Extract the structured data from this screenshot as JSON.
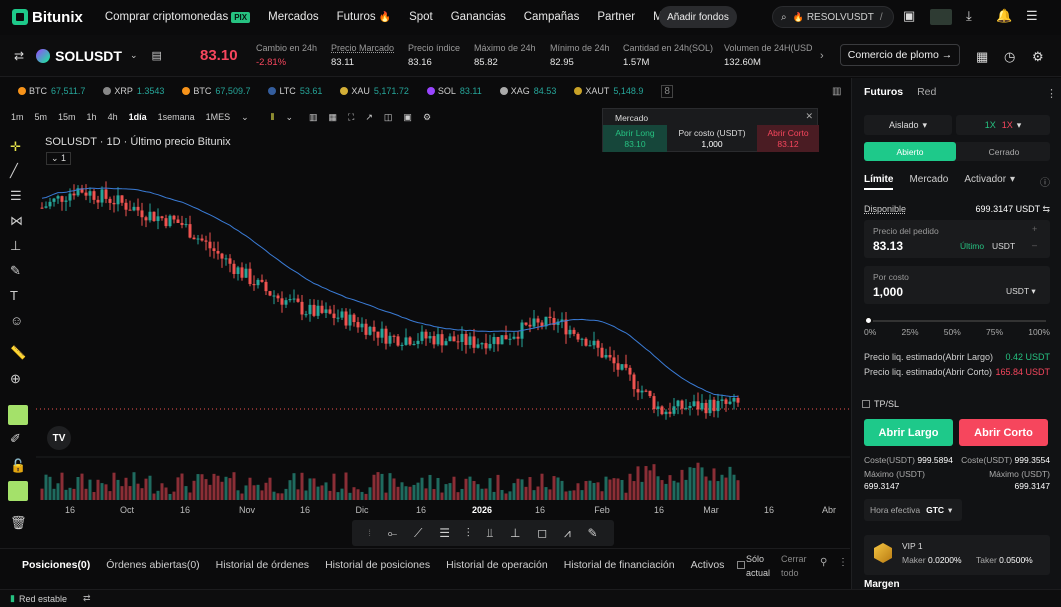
{
  "nav": {
    "brand": "Bitunix",
    "menu": [
      {
        "label": "Comprar criptomonedas",
        "badge": "PIX"
      },
      {
        "label": "Mercados"
      },
      {
        "label": "Futuros",
        "badge_icon": "fire-icon"
      },
      {
        "label": "Spot"
      },
      {
        "label": "Ganancias"
      },
      {
        "label": "Campañas"
      },
      {
        "label": "Partner"
      },
      {
        "label": "Más"
      }
    ],
    "fund_button": "Añadir fondos",
    "search_value": "RESOLVUSDT",
    "search_suffix": "/"
  },
  "ticker_header": {
    "symbol": "SOLUSDT",
    "last_price": "83.10",
    "stats": [
      {
        "label": "Cambio en 24h",
        "value": "-2.81%",
        "color": "#f6465d"
      },
      {
        "label": "Precio Marcado",
        "value": "83.11"
      },
      {
        "label": "Precio índice",
        "value": "83.16"
      },
      {
        "label": "Máximo de 24h",
        "value": "85.82"
      },
      {
        "label": "Mínimo de 24h",
        "value": "82.95"
      },
      {
        "label": "Cantidad en 24h(SOL)",
        "value": "1.57M"
      },
      {
        "label": "Volumen de 24H(USDT)",
        "value": "132.60M"
      }
    ],
    "comercio_button": "Comercio de plomo →"
  },
  "ticker_bar": [
    {
      "sym": "BTC",
      "price": "67,511.7"
    },
    {
      "sym": "XRP",
      "price": "1.3543"
    },
    {
      "sym": "BTC",
      "price": "67,509.7"
    },
    {
      "sym": "LTC",
      "price": "53.61"
    },
    {
      "sym": "XAU",
      "price": "5,171.72"
    },
    {
      "sym": "SOL",
      "price": "83.11"
    },
    {
      "sym": "XAG",
      "price": "84.53"
    },
    {
      "sym": "XAUT",
      "price": "5,148.9"
    }
  ],
  "timeframes": [
    "1m",
    "5m",
    "15m",
    "1h",
    "4h",
    "1día",
    "1semana",
    "1MES"
  ],
  "active_timeframe": "1día",
  "chart_title": "SOLUSDT · 1D · Último precio Bitunix",
  "chart_indicator_label": "1",
  "market_box": {
    "title": "Mercado",
    "long_label": "Abrir Long",
    "long_price": "83.10",
    "mid_label": "Por costo (USDT)",
    "mid_value": "1,000",
    "short_label": "Abrir Corto",
    "short_price": "83.12"
  },
  "chart_data": {
    "type": "candlestick",
    "x_ticks": [
      "16",
      "Oct",
      "16",
      "Nov",
      "16",
      "Dic",
      "16",
      "2026",
      "16",
      "Feb",
      "16",
      "Mar",
      "16",
      "Abr"
    ],
    "current_price": 83.1,
    "ma_line": "moving-average",
    "grid": false
  },
  "bottom_tabs": [
    "Posiciones(0)",
    "Órdenes abiertas(0)",
    "Historial de órdenes",
    "Historial de posiciones",
    "Historial de operación",
    "Historial de financiación",
    "Activos"
  ],
  "bottom_right": {
    "only_current": "Sólo actual",
    "close_all": "Cerrar todo"
  },
  "status": {
    "network": "Red estable"
  },
  "right_panel": {
    "tabs": [
      "Futuros",
      "Red"
    ],
    "margin_mode": "Aislado",
    "leverage_long": "1X",
    "leverage_short": "1X",
    "open_tab": "Abierto",
    "close_tab": "Cerrado",
    "order_types": [
      "Límite",
      "Mercado",
      "Activador"
    ],
    "available_label": "Disponible",
    "available_value": "699.3147 USDT",
    "price_label": "Precio del pedido",
    "price_value": "83.13",
    "price_last": "Último",
    "price_unit": "USDT",
    "cost_label": "Por costo",
    "cost_value": "1,000",
    "cost_unit": "USDT",
    "slider_marks": [
      "0%",
      "25%",
      "50%",
      "75%",
      "100%"
    ],
    "slider_level": 0,
    "liq_long_label": "Precio liq. estimado(Abrir Largo)",
    "liq_long_value": "0.42 USDT",
    "liq_short_label": "Precio liq. estimado(Abrir Corto)",
    "liq_short_value": "165.84 USDT",
    "tpsl": "TP/SL",
    "btn_long": "Abrir Largo",
    "btn_short": "Abrir Corto",
    "cost_long_label": "Coste(USDT)",
    "cost_long_value": "999.5894",
    "cost_short_label": "Coste(USDT)",
    "cost_short_value": "999.3554",
    "max_long_label": "Máximo (USDT)",
    "max_long_value": "699.3147",
    "max_short_label": "Máximo (USDT)",
    "max_short_value": "699.3147",
    "tif_label": "Hora efectiva",
    "tif_value": "GTC",
    "vip_level": "VIP 1",
    "maker_label": "Maker",
    "maker_value": "0.0200%",
    "taker_label": "Taker",
    "taker_value": "0.0500%",
    "margin_label": "Margen"
  }
}
